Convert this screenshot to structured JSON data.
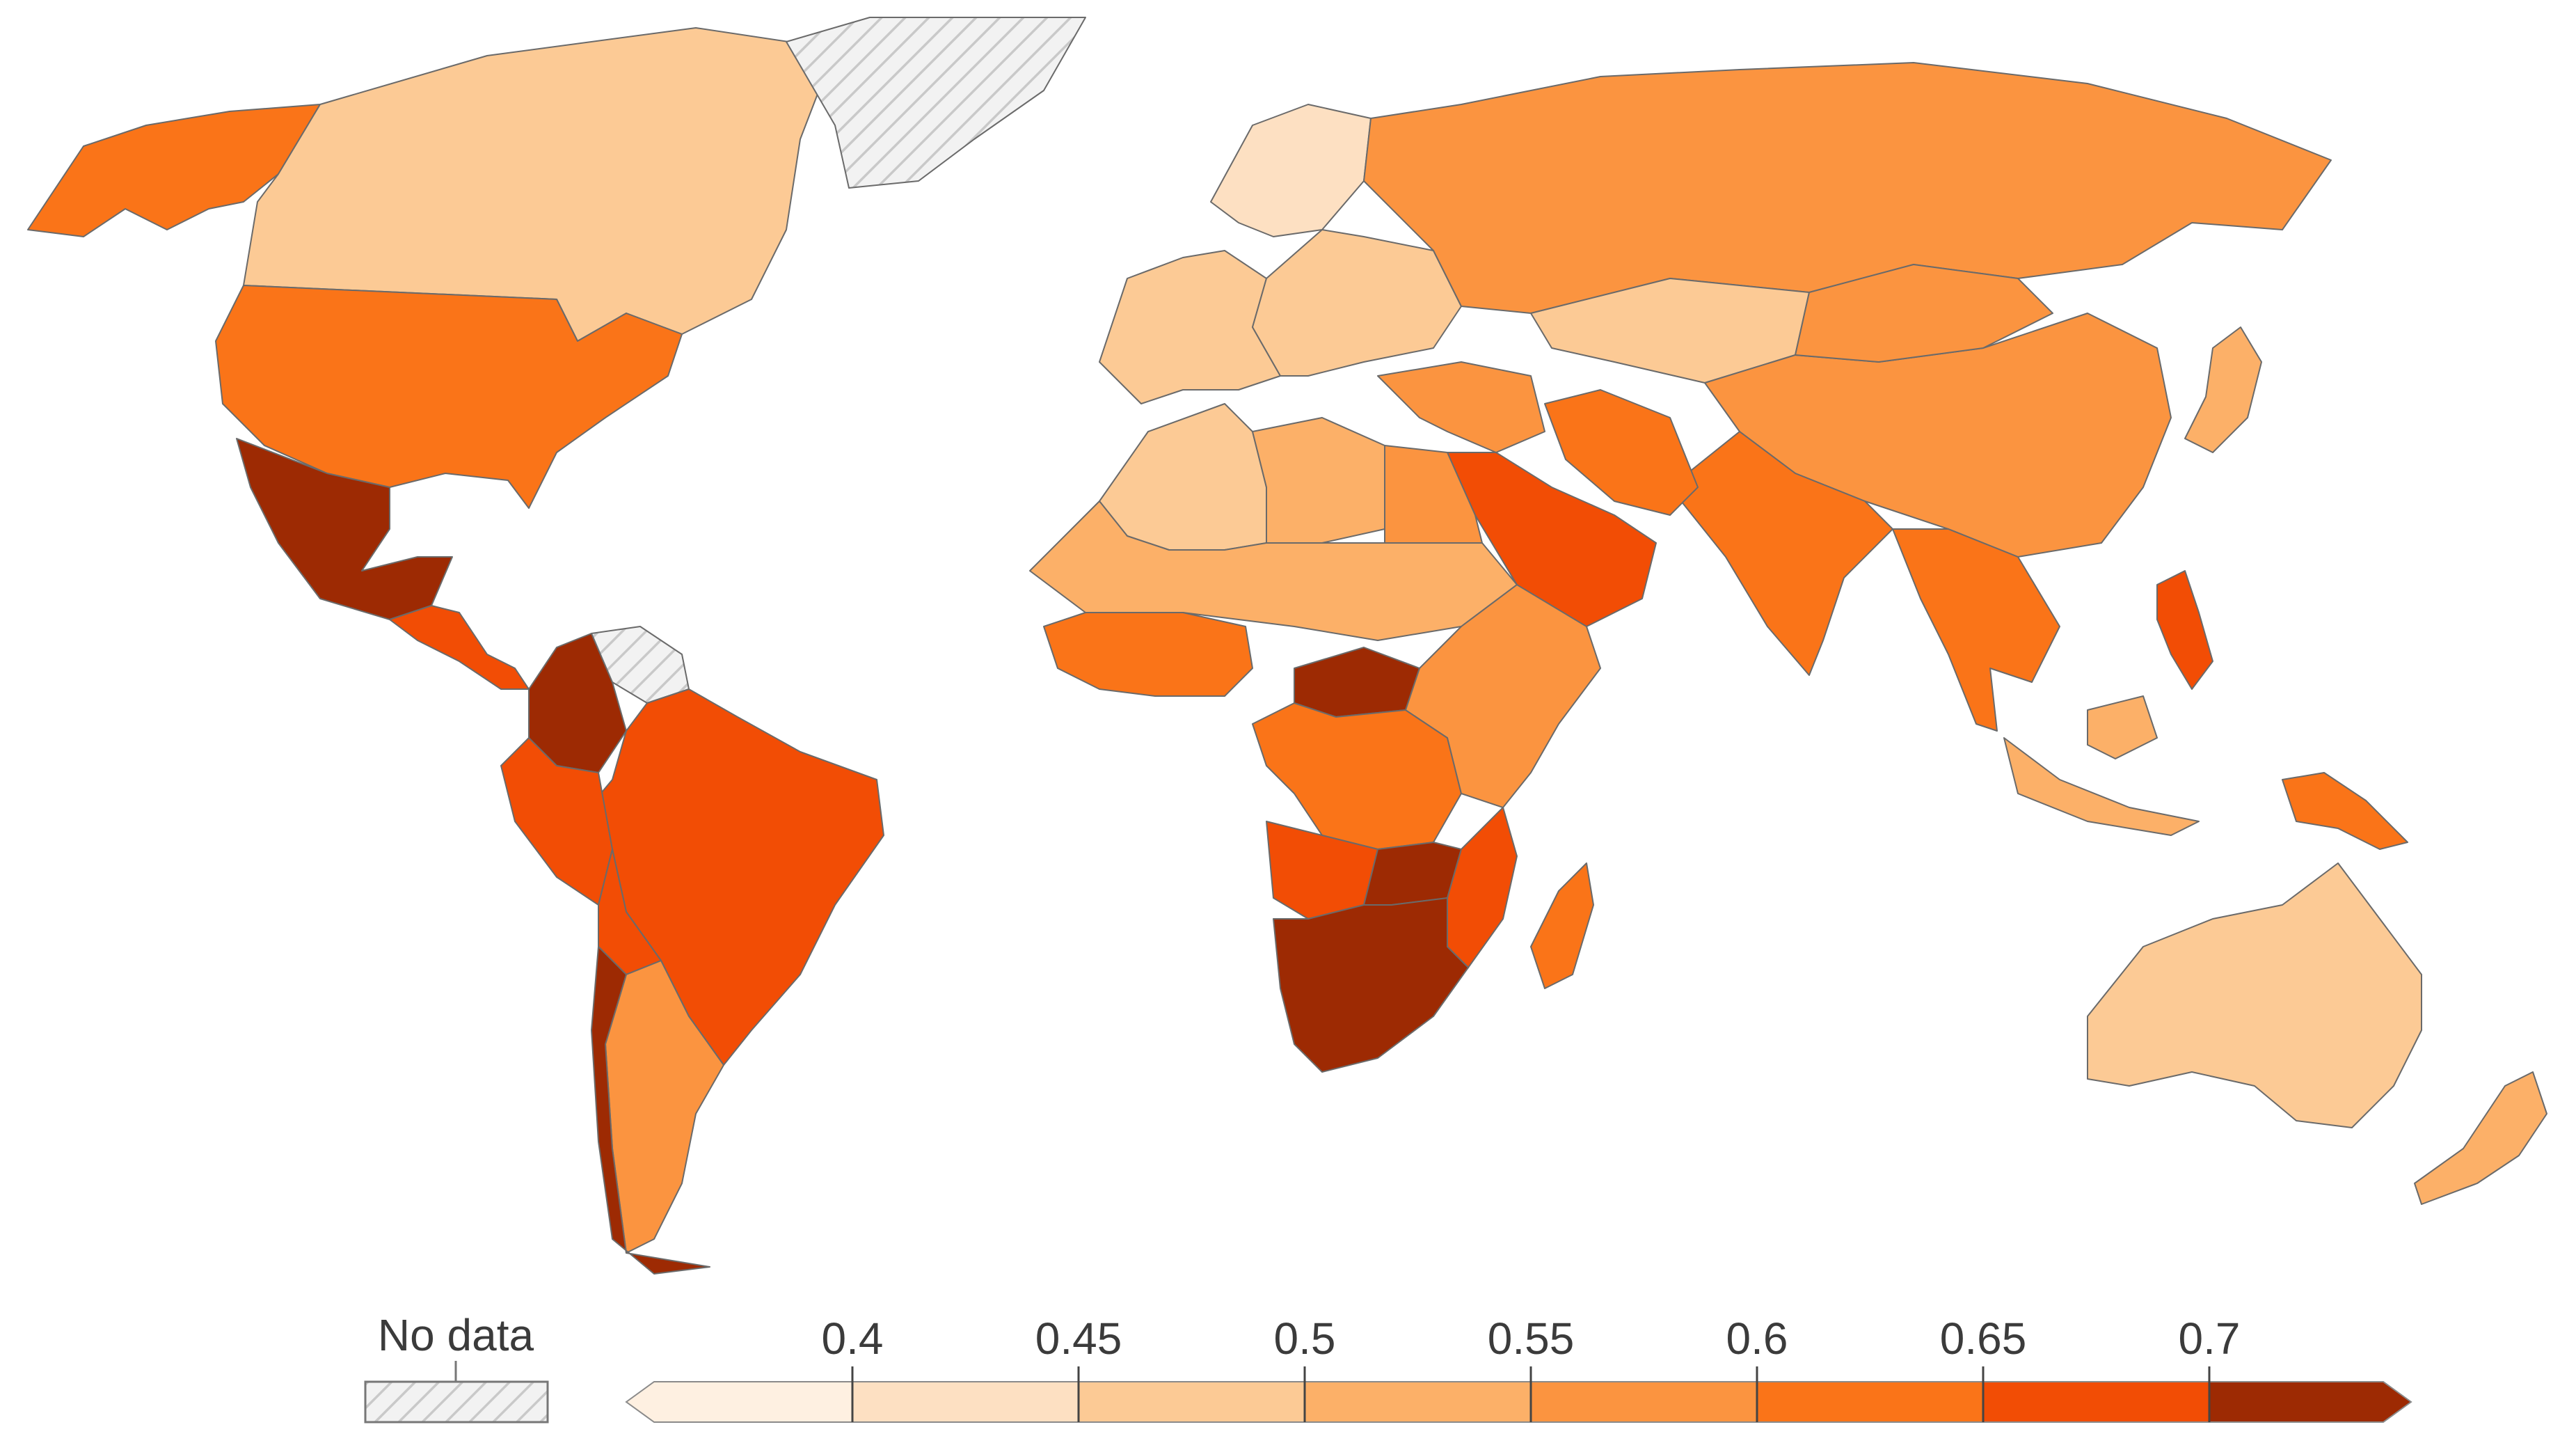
{
  "legend": {
    "no_data_label": "No data",
    "ticks": [
      "0.4",
      "0.45",
      "0.5",
      "0.55",
      "0.6",
      "0.65",
      "0.7"
    ],
    "bins": [
      {
        "range": "<0.4",
        "color": "#fef0e1"
      },
      {
        "range": "0.4-0.45",
        "color": "#fde0c2"
      },
      {
        "range": "0.45-0.5",
        "color": "#fcca95"
      },
      {
        "range": "0.5-0.55",
        "color": "#fcb068"
      },
      {
        "range": "0.55-0.6",
        "color": "#fb9440"
      },
      {
        "range": "0.6-0.65",
        "color": "#fa7418"
      },
      {
        "range": "0.65-0.7",
        "color": "#f24d05"
      },
      {
        "range": ">0.7",
        "color": "#9d2a03"
      }
    ]
  },
  "colors": {
    "no_data": "#f2f2f2",
    "hatch": "#c9c9c9",
    "border": "#6a6a6a"
  },
  "regions": [
    {
      "name": "Alaska",
      "bin": 5
    },
    {
      "name": "Canada",
      "bin": 2
    },
    {
      "name": "Greenland",
      "bin": -1
    },
    {
      "name": "United States",
      "bin": 5
    },
    {
      "name": "Mexico",
      "bin": 7
    },
    {
      "name": "Central America",
      "bin": 6
    },
    {
      "name": "Colombia",
      "bin": 7
    },
    {
      "name": "Venezuela",
      "bin": -1
    },
    {
      "name": "Brazil",
      "bin": 6
    },
    {
      "name": "Peru",
      "bin": 6
    },
    {
      "name": "Bolivia",
      "bin": 6
    },
    {
      "name": "Argentina",
      "bin": 4
    },
    {
      "name": "Chile",
      "bin": 7
    },
    {
      "name": "Scandinavia",
      "bin": 1
    },
    {
      "name": "Western Europe",
      "bin": 2
    },
    {
      "name": "Eastern Europe",
      "bin": 2
    },
    {
      "name": "Russia",
      "bin": 4
    },
    {
      "name": "Kazakhstan",
      "bin": 2
    },
    {
      "name": "China",
      "bin": 4
    },
    {
      "name": "Mongolia",
      "bin": 4
    },
    {
      "name": "Japan",
      "bin": 3
    },
    {
      "name": "India",
      "bin": 5
    },
    {
      "name": "Southeast Asia",
      "bin": 5
    },
    {
      "name": "Middle East",
      "bin": 4
    },
    {
      "name": "Saudi Arabia",
      "bin": 6
    },
    {
      "name": "Iran",
      "bin": 5
    },
    {
      "name": "Algeria",
      "bin": 2
    },
    {
      "name": "Libya",
      "bin": 3
    },
    {
      "name": "Egypt",
      "bin": 4
    },
    {
      "name": "Sahel",
      "bin": 3
    },
    {
      "name": "West Africa",
      "bin": 5
    },
    {
      "name": "Central African Republic",
      "bin": 7
    },
    {
      "name": "DR Congo",
      "bin": 5
    },
    {
      "name": "East Africa",
      "bin": 4
    },
    {
      "name": "Angola",
      "bin": 6
    },
    {
      "name": "Zambia",
      "bin": 7
    },
    {
      "name": "Mozambique",
      "bin": 6
    },
    {
      "name": "Southern Africa",
      "bin": 7
    },
    {
      "name": "Madagascar",
      "bin": 5
    },
    {
      "name": "Indonesia",
      "bin": 3
    },
    {
      "name": "Philippines",
      "bin": 6
    },
    {
      "name": "Papua New Guinea",
      "bin": 5
    },
    {
      "name": "Australia",
      "bin": 2
    },
    {
      "name": "New Zealand",
      "bin": 3
    }
  ]
}
